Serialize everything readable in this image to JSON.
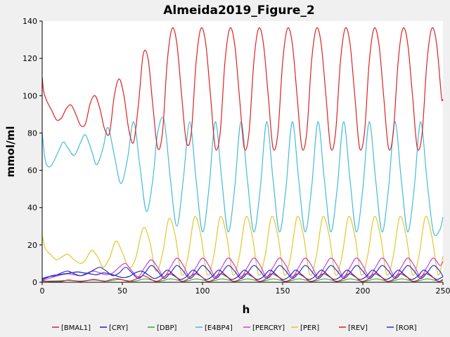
{
  "chart_data": {
    "type": "line",
    "title": "Almeida2019_Figure_2",
    "xlabel": "h",
    "ylabel": "mmol/ml",
    "xlim": [
      0,
      250
    ],
    "ylim": [
      0,
      140
    ],
    "xticks": [
      0,
      50,
      100,
      150,
      200,
      250
    ],
    "yticks": [
      0,
      20,
      40,
      60,
      80,
      100,
      120,
      140
    ],
    "grid": false,
    "legend_position": "bottom",
    "series": [
      {
        "name": "[BMAL1]",
        "color": "#cc2244",
        "x": [
          0,
          3,
          8,
          12,
          16,
          20,
          24,
          28,
          32,
          36,
          39,
          42,
          46,
          50,
          54,
          58,
          63,
          67,
          71,
          75,
          79,
          83,
          87,
          91,
          95,
          99,
          103,
          107,
          111,
          115,
          119,
          123,
          127,
          131,
          135,
          139,
          143,
          147,
          151,
          155,
          159,
          163,
          167,
          171,
          175,
          179,
          183,
          187,
          191,
          195,
          199,
          203,
          207,
          211,
          215,
          219,
          223,
          227,
          231,
          235,
          239,
          243,
          247,
          250
        ],
        "values": [
          1,
          0.5,
          0.3,
          0.4,
          1.2,
          0.8,
          0.4,
          0.9,
          1.5,
          1.0,
          0.5,
          1.2,
          2.0,
          1.3,
          0.5,
          1.5,
          3.5,
          2.0,
          0.4,
          2.0,
          4.5,
          3.0,
          0.5,
          1.8,
          4.5,
          3.2,
          0.5,
          1.5,
          4.5,
          3.0,
          0.5,
          1.5,
          4.5,
          3.0,
          0.5,
          1.5,
          4.5,
          3.0,
          0.5,
          1.5,
          4.5,
          3.0,
          0.5,
          1.5,
          4.5,
          3.0,
          0.5,
          1.5,
          4.5,
          3.0,
          0.5,
          1.5,
          4.5,
          3.0,
          0.5,
          1.5,
          4.5,
          3.0,
          0.5,
          1.5,
          4.5,
          3.0,
          0.5,
          1.5
        ]
      },
      {
        "name": "[CRY]",
        "color": "#2222aa",
        "x": [
          0,
          3,
          6,
          10,
          14,
          18,
          22,
          26,
          30,
          34,
          38,
          42,
          46,
          50,
          54,
          58,
          62,
          66,
          70,
          74,
          78,
          82,
          86,
          90,
          94,
          98,
          102,
          106,
          110,
          114,
          118,
          122,
          126,
          130,
          134,
          138,
          142,
          146,
          150,
          154,
          158,
          162,
          166,
          170,
          174,
          178,
          182,
          186,
          190,
          194,
          198,
          202,
          206,
          210,
          214,
          218,
          222,
          226,
          230,
          234,
          238,
          242,
          246,
          250
        ],
        "values": [
          1.5,
          2.5,
          3.5,
          4.0,
          4.5,
          5.0,
          5.5,
          5.0,
          4.5,
          4.0,
          5.0,
          4.5,
          3.5,
          2.5,
          3.0,
          5.0,
          6.0,
          4.0,
          2.0,
          3.5,
          6.5,
          4.0,
          1.5,
          3.0,
          6.5,
          4.0,
          1.5,
          3.0,
          6.5,
          4.0,
          1.5,
          3.0,
          6.5,
          4.0,
          1.5,
          3.0,
          6.5,
          4.0,
          1.5,
          3.0,
          6.5,
          4.0,
          1.5,
          3.0,
          6.5,
          4.0,
          1.5,
          3.0,
          6.5,
          4.0,
          1.5,
          3.0,
          6.5,
          4.0,
          1.5,
          3.0,
          6.5,
          4.0,
          1.5,
          3.0,
          6.5,
          4.0,
          1.5,
          3.0
        ]
      },
      {
        "name": "[DBP]",
        "color": "#33aa33",
        "x": [
          0,
          4,
          8,
          12,
          16,
          20,
          24,
          28,
          32,
          36,
          40,
          44,
          48,
          52,
          56,
          60,
          64,
          68,
          72,
          76,
          80,
          84,
          88,
          92,
          96,
          100,
          104,
          108,
          112,
          116,
          120,
          124,
          128,
          132,
          136,
          140,
          144,
          148,
          152,
          156,
          160,
          164,
          168,
          172,
          176,
          180,
          184,
          188,
          192,
          196,
          200,
          204,
          208,
          212,
          216,
          220,
          224,
          228,
          232,
          236,
          240,
          244,
          248,
          250
        ],
        "values": [
          0.5,
          0.6,
          0.7,
          0.8,
          1.0,
          0.8,
          0.6,
          0.9,
          1.2,
          0.9,
          0.6,
          1.0,
          1.5,
          1.0,
          0.5,
          1.0,
          1.8,
          1.2,
          0.5,
          1.0,
          1.8,
          1.2,
          0.5,
          1.0,
          1.8,
          1.2,
          0.5,
          1.0,
          1.8,
          1.2,
          0.5,
          1.0,
          1.8,
          1.2,
          0.5,
          1.0,
          1.8,
          1.2,
          0.5,
          1.0,
          1.8,
          1.2,
          0.5,
          1.0,
          1.8,
          1.2,
          0.5,
          1.0,
          1.8,
          1.2,
          0.5,
          1.0,
          1.8,
          1.2,
          0.5,
          1.0,
          1.8,
          1.2,
          0.5,
          1.0,
          1.8,
          1.2,
          0.5,
          1.0
        ]
      },
      {
        "name": "[E4BP4]",
        "color": "#44bbdd",
        "x": [
          0,
          2,
          5,
          9,
          13,
          16,
          20,
          24,
          27,
          31,
          34,
          38,
          41,
          45,
          49,
          53,
          57,
          61,
          65,
          69,
          72,
          76,
          80,
          84,
          88,
          92,
          96,
          100,
          104,
          108,
          112,
          116,
          120,
          124,
          128,
          132,
          136,
          140,
          144,
          148,
          152,
          156,
          160,
          164,
          168,
          172,
          176,
          180,
          184,
          188,
          192,
          196,
          200,
          204,
          208,
          212,
          216,
          220,
          224,
          228,
          232,
          236,
          240,
          244,
          248,
          250
        ],
        "values": [
          80,
          65,
          62,
          68,
          75,
          72,
          68,
          75,
          79,
          70,
          63,
          72,
          83,
          68,
          53,
          65,
          86,
          62,
          38,
          55,
          80,
          87,
          55,
          30,
          55,
          86,
          55,
          27,
          50,
          86,
          55,
          27,
          50,
          86,
          55,
          27,
          50,
          86,
          55,
          27,
          50,
          86,
          55,
          27,
          50,
          86,
          55,
          27,
          50,
          86,
          55,
          27,
          50,
          86,
          55,
          27,
          50,
          86,
          55,
          27,
          50,
          86,
          55,
          27,
          28,
          35
        ]
      },
      {
        "name": "[PERCRY]",
        "color": "#cc44cc",
        "x": [
          0,
          4,
          8,
          12,
          16,
          20,
          24,
          28,
          32,
          36,
          40,
          44,
          48,
          52,
          56,
          60,
          64,
          68,
          72,
          76,
          80,
          84,
          88,
          92,
          96,
          100,
          104,
          108,
          112,
          116,
          120,
          124,
          128,
          132,
          136,
          140,
          144,
          148,
          152,
          156,
          160,
          164,
          168,
          172,
          176,
          180,
          184,
          188,
          192,
          196,
          200,
          204,
          208,
          212,
          216,
          220,
          224,
          228,
          232,
          236,
          240,
          244,
          248,
          250
        ],
        "values": [
          1,
          2,
          3,
          4,
          4.5,
          4,
          3.5,
          5,
          6,
          5,
          4,
          5,
          8,
          10,
          6,
          3,
          8,
          12,
          8,
          3,
          8,
          13,
          9,
          3,
          8,
          13,
          9,
          3,
          8,
          13,
          9,
          3,
          8,
          13,
          9,
          3,
          8,
          13,
          9,
          3,
          8,
          13,
          9,
          3,
          8,
          13,
          9,
          3,
          8,
          13,
          9,
          3,
          8,
          13,
          9,
          3,
          8,
          13,
          9,
          3,
          8,
          13,
          9,
          11
        ]
      },
      {
        "name": "[PER]",
        "color": "#e6c52a",
        "x": [
          0,
          2,
          5,
          9,
          13,
          16,
          20,
          24,
          27,
          31,
          35,
          38,
          42,
          46,
          50,
          54,
          58,
          63,
          67,
          71,
          75,
          79,
          83,
          87,
          91,
          95,
          99,
          103,
          107,
          111,
          115,
          119,
          123,
          127,
          131,
          135,
          139,
          143,
          147,
          151,
          155,
          159,
          163,
          167,
          171,
          175,
          179,
          183,
          187,
          191,
          195,
          199,
          203,
          207,
          211,
          215,
          219,
          223,
          227,
          231,
          235,
          239,
          243,
          247,
          250
        ],
        "values": [
          25,
          18,
          15,
          12,
          14,
          15,
          12,
          10,
          12,
          17,
          13,
          8,
          13,
          22,
          16,
          8,
          12,
          29,
          22,
          6,
          15,
          34,
          25,
          4,
          14,
          35,
          25,
          4,
          14,
          35,
          25,
          4,
          14,
          35,
          25,
          4,
          14,
          35,
          25,
          4,
          14,
          35,
          25,
          4,
          14,
          35,
          25,
          4,
          14,
          35,
          25,
          4,
          14,
          35,
          25,
          4,
          14,
          35,
          25,
          4,
          14,
          35,
          25,
          4,
          14
        ]
      },
      {
        "name": "[REV]",
        "color": "#dd2222",
        "x": [
          0,
          1,
          3,
          6,
          9,
          12,
          15,
          18,
          21,
          24,
          27,
          30,
          33,
          36,
          39,
          42,
          45,
          48,
          51,
          54,
          57,
          60,
          63,
          66,
          69,
          72,
          75,
          78,
          81,
          84,
          87,
          90,
          93,
          96,
          99,
          102,
          105,
          108,
          111,
          114,
          117,
          120,
          123,
          126,
          129,
          132,
          135,
          138,
          141,
          144,
          147,
          150,
          153,
          156,
          159,
          162,
          165,
          168,
          171,
          174,
          177,
          180,
          183,
          186,
          189,
          192,
          195,
          198,
          201,
          204,
          207,
          210,
          213,
          216,
          219,
          222,
          225,
          228,
          231,
          234,
          237,
          240,
          243,
          246,
          249,
          250
        ],
        "values": [
          110,
          102,
          97,
          92,
          87,
          88,
          93,
          95,
          90,
          84,
          85,
          96,
          100,
          93,
          82,
          80,
          100,
          109,
          100,
          82,
          75,
          95,
          122,
          120,
          95,
          72,
          80,
          118,
          136,
          128,
          100,
          75,
          80,
          118,
          136,
          128,
          100,
          72,
          80,
          118,
          136,
          128,
          100,
          72,
          80,
          118,
          136,
          128,
          100,
          72,
          80,
          118,
          136,
          128,
          100,
          72,
          80,
          118,
          136,
          128,
          100,
          72,
          80,
          118,
          136,
          128,
          100,
          72,
          80,
          118,
          136,
          128,
          100,
          72,
          80,
          118,
          136,
          128,
          100,
          72,
          80,
          118,
          136,
          128,
          100,
          98
        ]
      },
      {
        "name": "[ROR]",
        "color": "#2233dd",
        "x": [
          0,
          4,
          8,
          12,
          16,
          20,
          24,
          28,
          32,
          36,
          40,
          44,
          48,
          52,
          56,
          60,
          64,
          68,
          72,
          76,
          80,
          84,
          88,
          92,
          96,
          100,
          104,
          108,
          112,
          116,
          120,
          124,
          128,
          132,
          136,
          140,
          144,
          148,
          152,
          156,
          160,
          164,
          168,
          172,
          176,
          180,
          184,
          188,
          192,
          196,
          200,
          204,
          208,
          212,
          216,
          220,
          224,
          228,
          232,
          236,
          240,
          244,
          248,
          250
        ],
        "values": [
          2,
          3,
          3.5,
          5,
          6,
          4.5,
          3.5,
          4.5,
          6.5,
          8,
          6,
          3.5,
          5,
          8,
          5,
          2,
          5,
          9,
          6,
          2,
          5,
          9,
          6,
          2,
          5,
          9,
          6,
          2,
          5,
          9,
          6,
          2,
          5,
          9,
          6,
          2,
          5,
          9,
          6,
          2,
          5,
          9,
          6,
          2,
          5,
          9,
          6,
          2,
          5,
          9,
          6,
          2,
          5,
          9,
          6,
          2,
          5,
          9,
          6,
          2,
          5,
          9,
          6,
          3
        ]
      }
    ]
  }
}
